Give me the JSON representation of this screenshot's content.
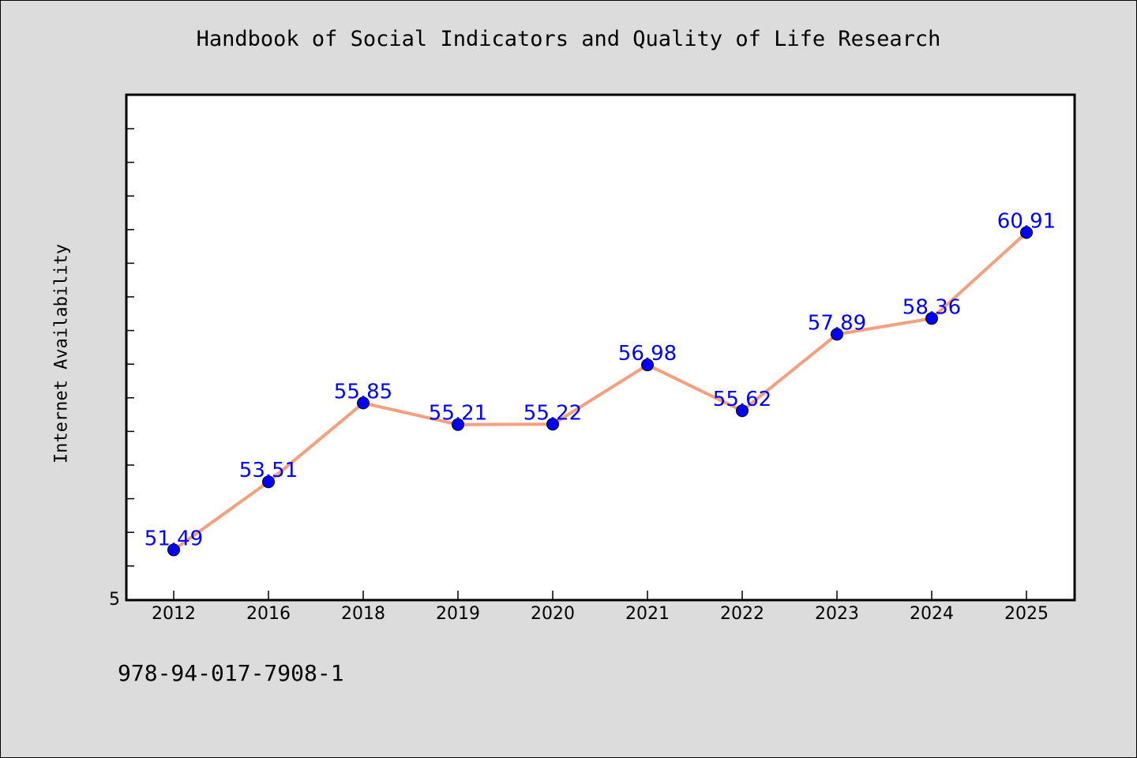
{
  "chart_data": {
    "type": "line",
    "title": "Handbook of Social Indicators and Quality of Life Research",
    "xlabel": "",
    "ylabel": "Internet Availability",
    "categories": [
      "2012",
      "2016",
      "2018",
      "2019",
      "2020",
      "2021",
      "2022",
      "2023",
      "2024",
      "2025"
    ],
    "values": [
      51.49,
      53.51,
      55.85,
      55.21,
      55.22,
      56.98,
      55.62,
      57.89,
      58.36,
      60.91
    ],
    "data_labels": [
      "51.49",
      "53.51",
      "55.85",
      "55.21",
      "55.22",
      "56.98",
      "55.62",
      "57.89",
      "58.36",
      "60.91"
    ],
    "ylim": [
      50.0,
      65.0
    ],
    "y_tick_labels": [
      "5"
    ],
    "grid": false,
    "line_color": "#f4a07e",
    "marker_color": "#0000ff",
    "label_color": "#0000ff"
  },
  "footer": {
    "isbn": "978-94-017-7908-1"
  }
}
